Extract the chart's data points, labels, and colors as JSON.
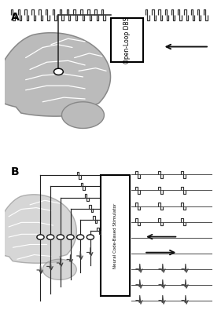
{
  "bg_color": "#ffffff",
  "brain_color": "#bbbbbb",
  "brain_edge_color": "#888888",
  "box_color": "#ffffff",
  "box_border_color": "#000000",
  "wire_color": "#222222",
  "pulse_color": "#333333",
  "spike_color": "#444444",
  "electrode_fill": "#ffffff",
  "electrode_edge": "#111111",
  "text_color": "#000000",
  "label_A": "A",
  "label_B": "B",
  "box_text_A": "Open-Loop DBS",
  "box_text_B": "Neural Code-Based Stimulator"
}
